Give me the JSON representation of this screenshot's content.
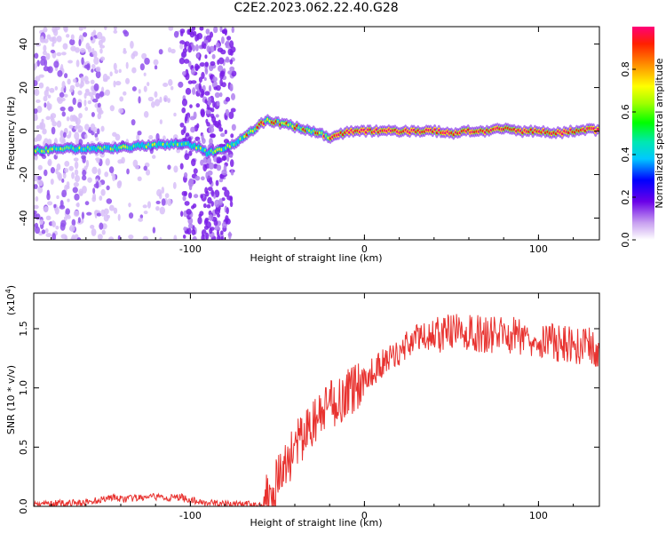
{
  "title": "C2E2.2023.062.22.40.G28",
  "chart_data": [
    {
      "type": "heatmap",
      "xlabel": "Height of straight line (km)",
      "ylabel": "Frequency (Hz)",
      "xlim": [
        -190,
        135
      ],
      "ylim": [
        -50,
        48
      ],
      "xticks": [
        -100,
        0,
        100
      ],
      "xtick_labels": [
        "-100",
        "0",
        "100"
      ],
      "yticks": [
        -40,
        -20,
        0,
        20,
        40
      ],
      "ytick_labels": [
        "-40",
        "-20",
        "0",
        "20",
        "40"
      ],
      "colorbar": {
        "label": "Normalized spectral amplitude",
        "range": [
          0,
          1
        ],
        "ticks": [
          0.0,
          0.2,
          0.4,
          0.6,
          0.8
        ],
        "tick_labels": [
          "0.0",
          "0.2",
          "0.4",
          "0.6",
          "0.8"
        ]
      },
      "ridge": {
        "x": [
          -190,
          -170,
          -150,
          -130,
          -110,
          -100,
          -90,
          -80,
          -70,
          -65,
          -60,
          -55,
          -50,
          -45,
          -40,
          -35,
          -30,
          -25,
          -20,
          -15,
          -10,
          -5,
          0,
          10,
          20,
          30,
          40,
          50,
          60,
          70,
          80,
          90,
          100,
          110,
          120,
          130,
          135
        ],
        "y": [
          -9,
          -8,
          -8,
          -7,
          -6,
          -6,
          -10,
          -8,
          -3,
          0,
          3,
          5,
          4,
          3,
          2,
          1,
          0,
          -1,
          -3,
          -2,
          0,
          0,
          0,
          0,
          0,
          0,
          0,
          -1,
          0,
          0,
          1,
          0,
          0,
          -1,
          0,
          1,
          0
        ]
      },
      "grid": false
    },
    {
      "type": "line",
      "xlabel": "Height of straight line (km)",
      "ylabel": "SNR (10 * v/v)",
      "multiplier": "(x10",
      "multiplier_exp": "4",
      "multiplier_close": ")",
      "xlim": [
        -190,
        135
      ],
      "ylim": [
        0,
        1.8
      ],
      "xticks": [
        -100,
        0,
        100
      ],
      "xtick_labels": [
        "-100",
        "0",
        "100"
      ],
      "yticks": [
        0.0,
        0.5,
        1.0,
        1.5
      ],
      "ytick_labels": [
        "0.0",
        "0.5",
        "1.0",
        "1.5"
      ],
      "series": [
        {
          "color": "#e8322f",
          "x": [
            -190,
            -160,
            -145,
            -140,
            -130,
            -120,
            -110,
            -105,
            -100,
            -90,
            -80,
            -70,
            -60,
            -55,
            -50,
            -45,
            -40,
            -35,
            -30,
            -25,
            -20,
            -10,
            0,
            10,
            20,
            25,
            30,
            40,
            50,
            60,
            70,
            80,
            90,
            100,
            110,
            120,
            130,
            135
          ],
          "y": [
            0.02,
            0.03,
            0.08,
            0.06,
            0.07,
            0.08,
            0.07,
            0.08,
            0.05,
            0.03,
            0.02,
            0.02,
            0.01,
            0.1,
            0.22,
            0.35,
            0.5,
            0.58,
            0.7,
            0.76,
            0.85,
            0.95,
            1.08,
            1.2,
            1.3,
            1.38,
            1.42,
            1.45,
            1.47,
            1.46,
            1.45,
            1.45,
            1.44,
            1.42,
            1.38,
            1.36,
            1.35,
            1.3
          ]
        }
      ],
      "grid": false
    }
  ]
}
